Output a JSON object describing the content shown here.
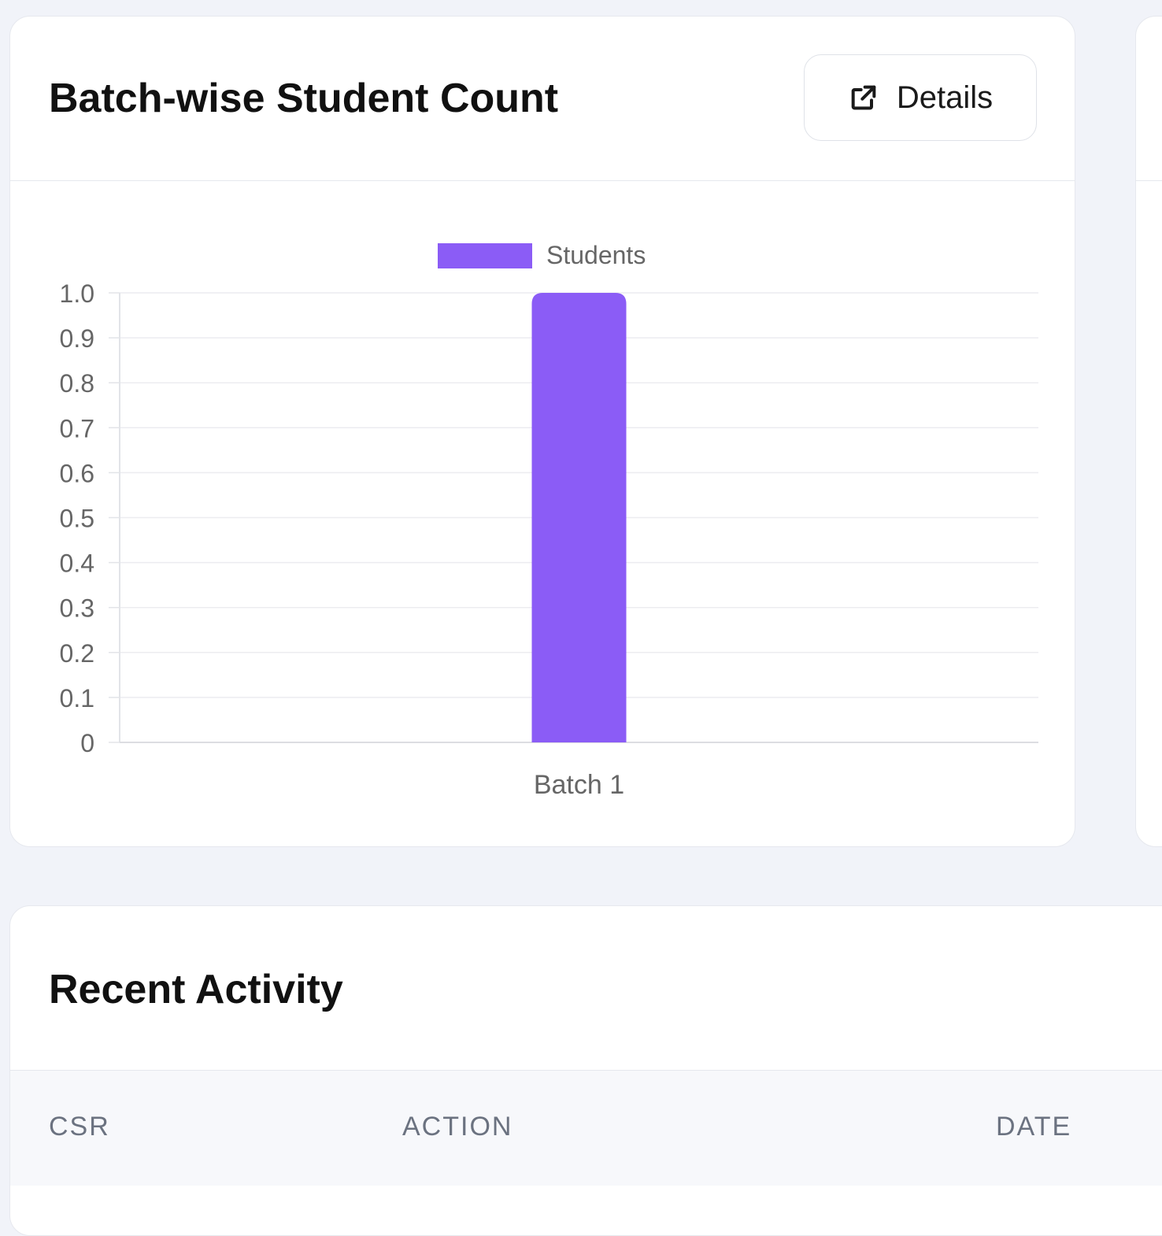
{
  "chart_card": {
    "title": "Batch-wise Student Count",
    "details_label": "Details"
  },
  "chart_data": {
    "type": "bar",
    "categories": [
      "Batch 1"
    ],
    "series": [
      {
        "name": "Students",
        "values": [
          1
        ],
        "color": "#8b5cf6"
      }
    ],
    "ylim": [
      0,
      1
    ],
    "yticks": [
      "0",
      "0.1",
      "0.2",
      "0.3",
      "0.4",
      "0.5",
      "0.6",
      "0.7",
      "0.8",
      "0.9",
      "1.0"
    ],
    "legend_position": "top",
    "grid": true
  },
  "activity_card": {
    "title": "Recent Activity",
    "columns": [
      "CSR",
      "ACTION",
      "DATE"
    ]
  },
  "colors": {
    "accent": "#8b5cf6",
    "background": "#f1f3f9"
  }
}
